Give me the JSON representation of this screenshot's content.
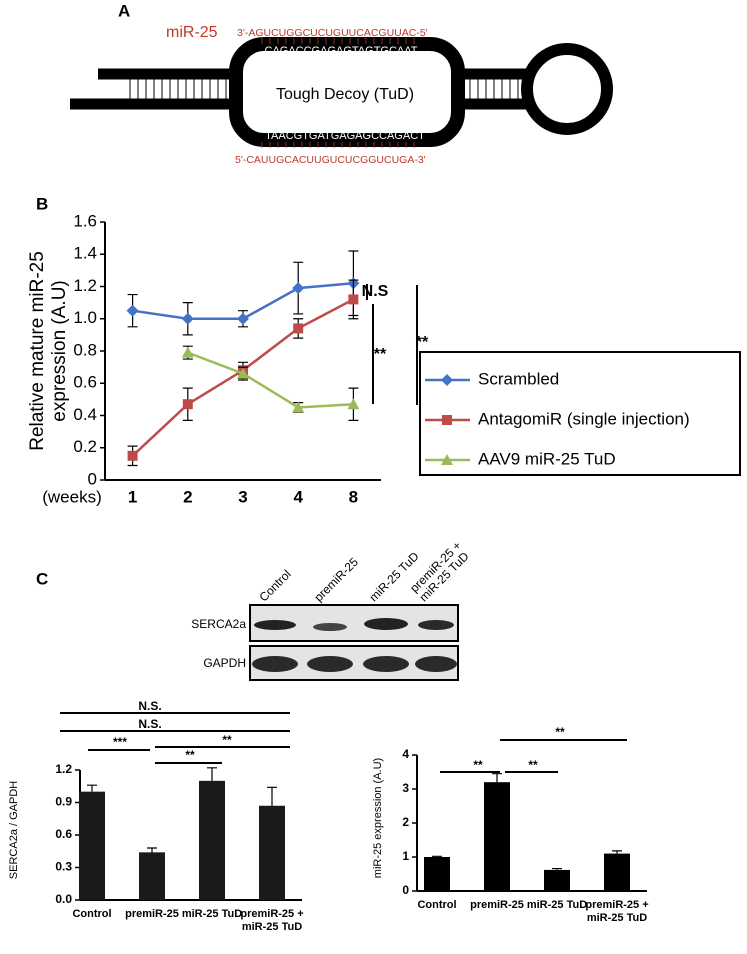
{
  "panels": [
    "A",
    "B",
    "C"
  ],
  "diagram": {
    "mirna_label": "miR-25",
    "mirna_top": "3'-AGUCUGGCUCUGUUCACGUUAC-5'",
    "strand_top": "CAGACCGAGAGTAGTGCAAT",
    "decoy_label": "Tough Decoy (TuD)",
    "strand_bottom": "TAACGTGATGAGAGCCAGACT",
    "mirna_bottom": "5'-CAUUGCACUUGUCUCGGUCUGA-3'"
  },
  "blot": {
    "lanes": [
      [
        "Control"
      ],
      [
        "premiR-25"
      ],
      [
        "miR-25 TuD"
      ],
      [
        "premiR-25 +",
        "miR-25 TuD"
      ]
    ],
    "rows": [
      "SERCA2a",
      "GAPDH"
    ]
  },
  "chart_data": [
    {
      "type": "line",
      "ylabel": [
        "Relative mature miR-25",
        "expression (A.U)"
      ],
      "xlabel": "(weeks)",
      "categories": [
        "1",
        "2",
        "3",
        "4",
        "8"
      ],
      "series": [
        {
          "name": "Scrambled",
          "color": "#4472c4",
          "marker": "diamond",
          "values": [
            1.05,
            1.0,
            1.0,
            1.19,
            1.22
          ],
          "errors": [
            0.1,
            0.1,
            0.05,
            0.16,
            0.2
          ]
        },
        {
          "name": "AntagomiR (single injection)",
          "color": "#be4b48",
          "marker": "square",
          "values": [
            0.15,
            0.47,
            0.68,
            0.94,
            1.12
          ],
          "errors": [
            0.06,
            0.1,
            0.05,
            0.06,
            0.12
          ]
        },
        {
          "name": "AAV9 miR-25 TuD",
          "color": "#9bbb59",
          "marker": "triangle",
          "values": [
            null,
            0.79,
            0.66,
            0.45,
            0.47
          ],
          "errors": [
            null,
            0.04,
            0.04,
            0.03,
            0.1
          ]
        }
      ],
      "ylim": [
        0,
        1.6
      ],
      "yticks": [
        0,
        0.2,
        0.4,
        0.6,
        0.8,
        {
          "value": 1,
          "label": "1.0"
        },
        1.2,
        1.4,
        1.6
      ],
      "annotations": [
        "N.S",
        "**",
        "**"
      ]
    },
    {
      "type": "bar",
      "ylabel": "SERCA2a / GAPDH",
      "color": "#1a1a1a",
      "categories": [
        "Control",
        "premiR-25",
        "miR-25 TuD",
        "premiR-25 + miR-25 TuD"
      ],
      "values": [
        1.0,
        0.44,
        1.1,
        0.87
      ],
      "errors": [
        0.06,
        0.04,
        0.12,
        0.17
      ],
      "ylim": [
        0,
        1.2
      ],
      "yticks": [
        {
          "value": 0,
          "label": "0.0"
        },
        0.3,
        0.6,
        0.9,
        1.2
      ],
      "annotations": [
        "N.S.",
        "N.S.",
        "***",
        "**",
        "**"
      ]
    },
    {
      "type": "bar",
      "ylabel": "miR-25 expression (A.U)",
      "color": "#000000",
      "categories": [
        "Control",
        "premiR-25",
        "miR-25 TuD",
        "premiR-25 + miR-25 TuD"
      ],
      "values": [
        1.0,
        3.2,
        0.62,
        1.1
      ],
      "errors": [
        0.02,
        0.25,
        0.04,
        0.08
      ],
      "ylim": [
        0,
        4
      ],
      "yticks": [
        0,
        1,
        2,
        3,
        4
      ],
      "annotations": [
        "**",
        "**",
        "**"
      ]
    }
  ]
}
